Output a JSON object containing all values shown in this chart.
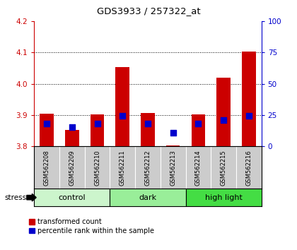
{
  "title": "GDS3933 / 257322_at",
  "samples": [
    "GSM562208",
    "GSM562209",
    "GSM562210",
    "GSM562211",
    "GSM562212",
    "GSM562213",
    "GSM562214",
    "GSM562215",
    "GSM562216"
  ],
  "red_bar_tops": [
    3.905,
    3.852,
    3.903,
    4.053,
    3.907,
    3.803,
    3.903,
    4.02,
    4.103
  ],
  "blue_dot_values": [
    3.872,
    3.862,
    3.872,
    3.897,
    3.872,
    3.843,
    3.873,
    3.883,
    3.897
  ],
  "bar_bottom": 3.8,
  "ylim": [
    3.8,
    4.2
  ],
  "yticks_left": [
    3.8,
    3.9,
    4.0,
    4.1,
    4.2
  ],
  "yticks_right": [
    0,
    25,
    50,
    75,
    100
  ],
  "groups": [
    {
      "label": "control",
      "start": 0,
      "end": 3,
      "color": "#ccf5cc"
    },
    {
      "label": "dark",
      "start": 3,
      "end": 6,
      "color": "#99ee99"
    },
    {
      "label": "high light",
      "start": 6,
      "end": 9,
      "color": "#44dd44"
    }
  ],
  "bar_color": "#cc0000",
  "dot_color": "#0000cc",
  "bar_width": 0.55,
  "dot_size": 30,
  "bg_plot": "#ffffff",
  "bg_xticklabel": "#cccccc",
  "left_tick_color": "#cc0000",
  "right_tick_color": "#0000cc",
  "legend_red": "transformed count",
  "legend_blue": "percentile rank within the sample",
  "stress_label": "stress"
}
